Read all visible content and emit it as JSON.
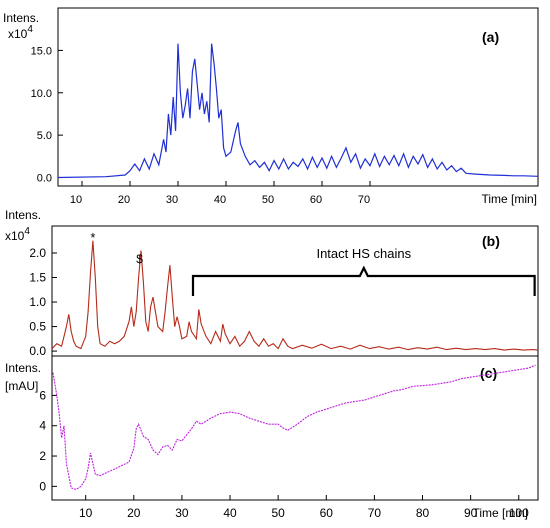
{
  "chart_data": [
    {
      "type": "line",
      "panel_label": "(a)",
      "ylabel_line1": "Intens.",
      "ylabel_line2": "x10",
      "ylabel_exp": "4",
      "xlabel": "Time [min]",
      "xlim": [
        5,
        105
      ],
      "ylim": [
        -1,
        20
      ],
      "xticks": [
        10,
        20,
        30,
        40,
        50,
        60,
        70
      ],
      "yticks": [
        0.0,
        5.0,
        10.0,
        15.0
      ],
      "ytick_labels": [
        "0.0",
        "5.0",
        "10.0",
        "15.0"
      ],
      "color": "#1f2fd6",
      "series": [
        {
          "x": [
            5,
            15,
            19,
            20,
            21,
            22,
            23,
            24,
            25,
            26,
            27,
            27.5,
            28,
            28.5,
            29,
            29.5,
            30,
            30.5,
            31,
            31.5,
            32,
            32.5,
            33,
            33.5,
            34,
            34.5,
            35,
            35.5,
            36,
            36.5,
            37,
            37.5,
            38,
            38.5,
            39,
            39.5,
            40,
            41,
            42,
            42.5,
            43,
            44,
            45,
            46,
            47,
            48,
            49,
            50,
            51,
            52,
            53,
            54,
            55,
            56,
            57,
            58,
            59,
            60,
            61,
            62,
            63,
            64,
            65,
            66,
            67,
            68,
            69,
            70,
            71,
            72,
            73,
            74,
            75,
            76,
            77,
            78,
            79,
            80,
            81,
            82,
            83,
            84,
            85,
            86,
            87,
            88,
            89,
            90,
            92,
            95,
            98,
            100,
            102,
            105
          ],
          "y": [
            0.0,
            0.1,
            0.3,
            0.8,
            1.6,
            0.8,
            2.2,
            1.0,
            2.8,
            1.5,
            4.5,
            3.0,
            7.5,
            5.0,
            9.5,
            5.5,
            15.8,
            10.0,
            7.0,
            8.5,
            10.5,
            7.0,
            12.5,
            14.0,
            11.0,
            8.0,
            10.0,
            7.5,
            9.0,
            6.5,
            15.8,
            13.5,
            10.5,
            7.0,
            8.0,
            3.5,
            2.5,
            3.0,
            5.5,
            6.5,
            4.0,
            2.5,
            1.5,
            2.0,
            1.2,
            1.8,
            0.8,
            2.0,
            1.0,
            2.2,
            1.0,
            1.8,
            1.3,
            2.2,
            1.0,
            2.4,
            1.2,
            2.3,
            1.1,
            2.5,
            1.2,
            2.3,
            3.5,
            1.8,
            2.8,
            1.1,
            2.2,
            1.4,
            2.8,
            1.3,
            2.5,
            1.5,
            2.6,
            1.4,
            2.8,
            1.2,
            2.5,
            1.6,
            2.7,
            1.2,
            2.2,
            1.0,
            1.8,
            0.9,
            1.4,
            0.7,
            1.1,
            0.5,
            0.4,
            0.3,
            0.25,
            0.2,
            0.2,
            0.15
          ]
        }
      ]
    },
    {
      "type": "line",
      "panel_label": "(b)",
      "ylabel_line1": "Intens.",
      "ylabel_line2": "x10",
      "ylabel_exp": "4",
      "xlim": [
        3,
        104
      ],
      "ylim": [
        -0.1,
        2.55
      ],
      "yticks": [
        0.0,
        0.5,
        1.0,
        1.5,
        2.0
      ],
      "ytick_labels": [
        "0.0",
        "0.5",
        "1.0",
        "1.5",
        "2.0"
      ],
      "color": "#b52a1a",
      "annotations": [
        {
          "text": "*",
          "x": 11.5,
          "y": 2.35
        },
        {
          "text": "$",
          "x": 21.2,
          "y": 1.92
        }
      ],
      "bracket": {
        "label": "Intact HS chains",
        "x_start": 32.3,
        "x_end": 103.3
      },
      "series": [
        {
          "x": [
            3,
            4,
            5,
            6,
            6.5,
            7,
            7.5,
            8,
            9,
            10,
            10.5,
            11,
            11.5,
            12,
            12.5,
            13,
            14,
            15,
            16,
            17,
            18,
            19,
            19.5,
            20,
            20.5,
            21,
            21.5,
            22,
            22.5,
            23,
            23.5,
            24,
            25,
            26,
            26.5,
            27,
            27.5,
            28,
            28.5,
            29,
            29.5,
            30,
            31,
            31.5,
            32,
            33,
            33.5,
            34,
            35,
            36,
            37,
            38,
            38.5,
            39,
            40,
            41,
            42,
            43,
            44,
            45,
            46,
            47,
            48,
            49,
            50,
            51,
            52,
            53,
            55,
            57,
            59,
            61,
            63,
            65,
            67,
            69,
            71,
            73,
            75,
            77,
            79,
            81,
            83,
            85,
            87,
            89,
            91,
            93,
            95,
            97,
            99,
            101,
            103,
            104
          ],
          "y": [
            0.05,
            0.15,
            0.1,
            0.5,
            0.75,
            0.4,
            0.2,
            0.1,
            0.05,
            0.3,
            0.8,
            1.6,
            2.25,
            1.5,
            0.5,
            0.15,
            0.1,
            0.2,
            0.15,
            0.2,
            0.3,
            0.6,
            0.9,
            0.5,
            0.8,
            1.5,
            2.05,
            1.4,
            0.6,
            0.4,
            0.9,
            1.1,
            0.5,
            0.4,
            0.8,
            1.3,
            1.75,
            1.1,
            0.5,
            0.7,
            0.5,
            0.25,
            0.3,
            0.6,
            0.4,
            0.25,
            0.85,
            0.55,
            0.3,
            0.15,
            0.4,
            0.2,
            0.55,
            0.35,
            0.15,
            0.3,
            0.1,
            0.2,
            0.4,
            0.2,
            0.1,
            0.25,
            0.1,
            0.15,
            0.05,
            0.25,
            0.1,
            0.05,
            0.12,
            0.06,
            0.14,
            0.05,
            0.1,
            0.04,
            0.12,
            0.05,
            0.09,
            0.04,
            0.08,
            0.03,
            0.07,
            0.04,
            0.08,
            0.03,
            0.06,
            0.03,
            0.05,
            0.03,
            0.05,
            0.02,
            0.04,
            0.02,
            0.03,
            0.02
          ]
        }
      ]
    },
    {
      "type": "line",
      "panel_label": "(c)",
      "ylabel_line1": "Intens.",
      "ylabel_line2": "[mAU]",
      "xlabel": "Time [min]",
      "xlim": [
        3,
        104
      ],
      "ylim": [
        -0.9,
        8.6
      ],
      "xticks": [
        10,
        20,
        30,
        40,
        50,
        60,
        70,
        80,
        90,
        100
      ],
      "yticks": [
        0,
        2,
        4,
        6
      ],
      "ytick_labels": [
        "0",
        "2",
        "4",
        "6"
      ],
      "color": "#c020e0",
      "series": [
        {
          "x": [
            3.2,
            4,
            4.5,
            5,
            5.5,
            6,
            7,
            8,
            9,
            10,
            10.5,
            11,
            11.5,
            12,
            13,
            15,
            17,
            19,
            20,
            20.5,
            21,
            21.5,
            22,
            23,
            24,
            25,
            26,
            27,
            28,
            29,
            30,
            31,
            32,
            33,
            34,
            35,
            36,
            38,
            40,
            42,
            44,
            46,
            48,
            50,
            51,
            52,
            54,
            56,
            58,
            60,
            62,
            64,
            66,
            68,
            70,
            72,
            74,
            76,
            78,
            80,
            82,
            84,
            86,
            88,
            90,
            92,
            94,
            96,
            98,
            100,
            102,
            103.5
          ],
          "y": [
            7.5,
            6.0,
            4.8,
            3.2,
            4.0,
            1.5,
            -0.1,
            -0.2,
            0.0,
            0.5,
            1.2,
            2.2,
            1.5,
            0.8,
            0.7,
            1.0,
            1.3,
            1.6,
            2.5,
            3.8,
            4.1,
            3.7,
            3.3,
            3.1,
            2.4,
            2.1,
            2.6,
            2.7,
            2.4,
            3.1,
            3.0,
            3.4,
            3.8,
            4.3,
            4.1,
            4.3,
            4.5,
            4.8,
            4.9,
            4.8,
            4.5,
            4.3,
            4.1,
            4.1,
            3.85,
            3.7,
            4.1,
            4.6,
            4.9,
            5.1,
            5.3,
            5.5,
            5.6,
            5.7,
            5.9,
            6.1,
            6.3,
            6.4,
            6.6,
            6.65,
            6.7,
            6.8,
            6.9,
            7.1,
            7.2,
            7.3,
            7.4,
            7.5,
            7.6,
            7.7,
            7.8,
            8.0
          ]
        }
      ]
    }
  ]
}
